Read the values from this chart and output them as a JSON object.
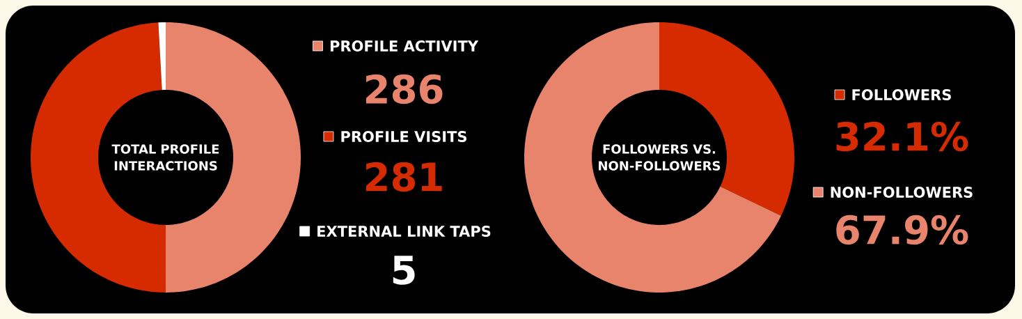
{
  "chart_data": [
    {
      "type": "donut",
      "title": "TOTAL PROFILE INTERACTIONS",
      "categories": [
        "PROFILE ACTIVITY",
        "PROFILE VISITS",
        "EXTERNAL LINK TAPS"
      ],
      "values": [
        286,
        281,
        5
      ],
      "value_labels": [
        "286",
        "281",
        "5"
      ],
      "legend": "right",
      "colors": [
        "#e8846b",
        "#d62b00",
        "#ffffff"
      ]
    },
    {
      "type": "donut",
      "title": "FOLLOWERS VS. NON-FOLLOWERS",
      "categories": [
        "FOLLOWERS",
        "NON-FOLLOWERS"
      ],
      "values": [
        32.1,
        67.9
      ],
      "value_labels": [
        "32.1%",
        "67.9%"
      ],
      "legend": "right",
      "colors": [
        "#d62b00",
        "#e8846b"
      ]
    }
  ]
}
